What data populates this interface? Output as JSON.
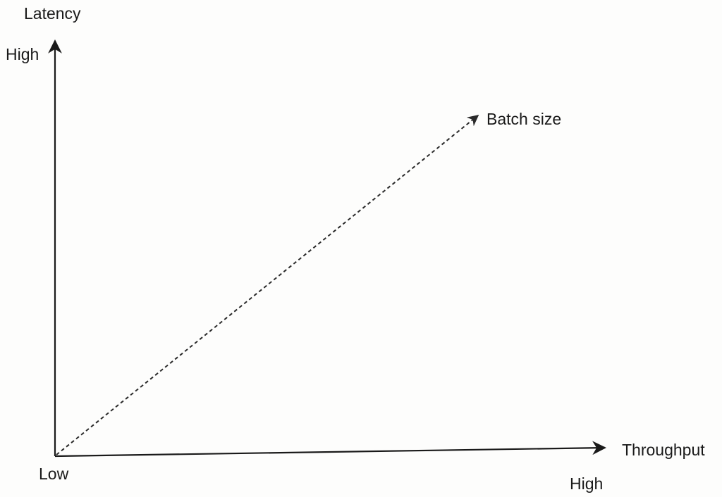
{
  "diagram": {
    "y_axis": {
      "title": "Latency",
      "high_label": "High"
    },
    "x_axis": {
      "title": "Throughput",
      "high_label": "High"
    },
    "origin_label": "Low",
    "trend": {
      "label": "Batch size",
      "direction": "increasing",
      "style": "dashed-arrow"
    },
    "colors": {
      "axis": "#1a1a1a",
      "trend": "#2a2a2a",
      "background": "#fdfdfc"
    }
  }
}
